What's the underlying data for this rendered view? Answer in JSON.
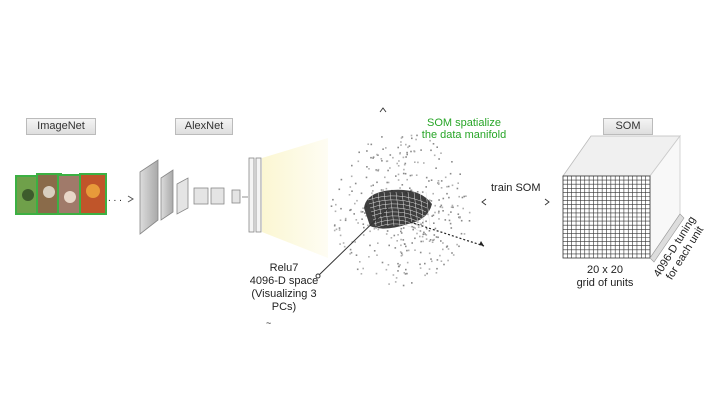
{
  "labels": {
    "imagenet": "ImageNet",
    "alexnet": "AlexNet",
    "som_box": "SOM",
    "som_spatialize_line1": "SOM spatialize",
    "som_spatialize_line2": "the data manifold",
    "train_som": "train SOM",
    "relu7_line1": "Relu7",
    "relu7_line2": "4096-D space",
    "relu7_line3": "(Visualizing 3",
    "relu7_line4": "PCs)",
    "grid_line1": "20 x 20",
    "grid_line2": "grid of units",
    "tuning_line1": "4096-D tuning",
    "tuning_line2": "for each unit",
    "ellipsis": ". . ."
  },
  "colors": {
    "accent_green": "#27a527",
    "image_border": "#3cb043",
    "feature_glow": "#fbf6d0"
  },
  "grid": {
    "rows": 20,
    "cols": 20
  }
}
